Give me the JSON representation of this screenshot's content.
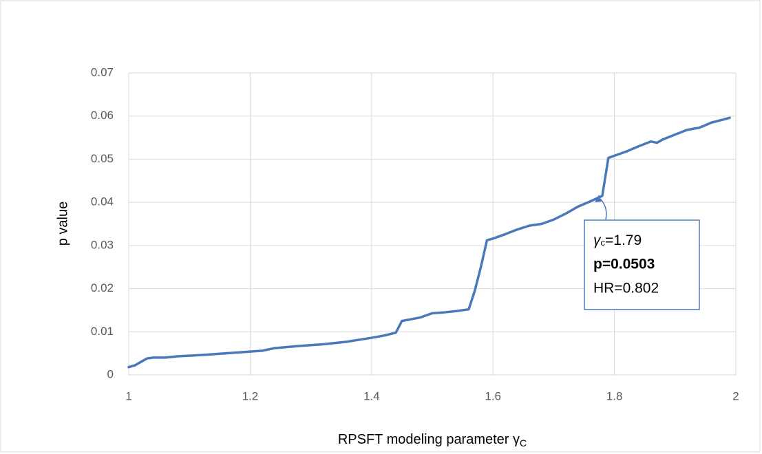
{
  "chart_data": {
    "type": "line",
    "y_label": "p value",
    "x_label": "RPSFT modeling parameter γ",
    "x_label_subscript": "C",
    "annotation": {
      "symbol": "γ",
      "subscript": "c",
      "gamma_text": "=1.79",
      "p_text": "p=0.0503",
      "hr_text": "HR=0.802"
    },
    "x": [
      1.0,
      1.01,
      1.02,
      1.03,
      1.04,
      1.06,
      1.08,
      1.12,
      1.16,
      1.2,
      1.22,
      1.24,
      1.28,
      1.32,
      1.36,
      1.4,
      1.42,
      1.44,
      1.45,
      1.48,
      1.5,
      1.52,
      1.54,
      1.56,
      1.57,
      1.58,
      1.59,
      1.6,
      1.62,
      1.64,
      1.66,
      1.68,
      1.7,
      1.72,
      1.74,
      1.76,
      1.78,
      1.79,
      1.8,
      1.82,
      1.84,
      1.86,
      1.87,
      1.88,
      1.9,
      1.92,
      1.94,
      1.96,
      1.98,
      1.99
    ],
    "series": [
      {
        "name": "p value",
        "color": "#4a78b8",
        "values": [
          0.0018,
          0.0022,
          0.003,
          0.0038,
          0.004,
          0.004,
          0.0043,
          0.0046,
          0.005,
          0.0054,
          0.0056,
          0.0062,
          0.0067,
          0.0071,
          0.0077,
          0.0086,
          0.0091,
          0.0098,
          0.0125,
          0.0133,
          0.0143,
          0.0145,
          0.0148,
          0.0152,
          0.0195,
          0.025,
          0.0312,
          0.0316,
          0.0326,
          0.0337,
          0.0346,
          0.035,
          0.036,
          0.0374,
          0.039,
          0.0402,
          0.0415,
          0.0503,
          0.0508,
          0.0518,
          0.053,
          0.0541,
          0.0538,
          0.0546,
          0.0557,
          0.0568,
          0.0573,
          0.0585,
          0.0592,
          0.0596
        ]
      }
    ],
    "xlim": [
      1,
      2
    ],
    "xticks": [
      1,
      1.2,
      1.4,
      1.6,
      1.8,
      2
    ],
    "ylim": [
      0,
      0.07
    ],
    "yticks": [
      0,
      0.01,
      0.02,
      0.03,
      0.04,
      0.05,
      0.06,
      0.07
    ],
    "grid": true
  }
}
